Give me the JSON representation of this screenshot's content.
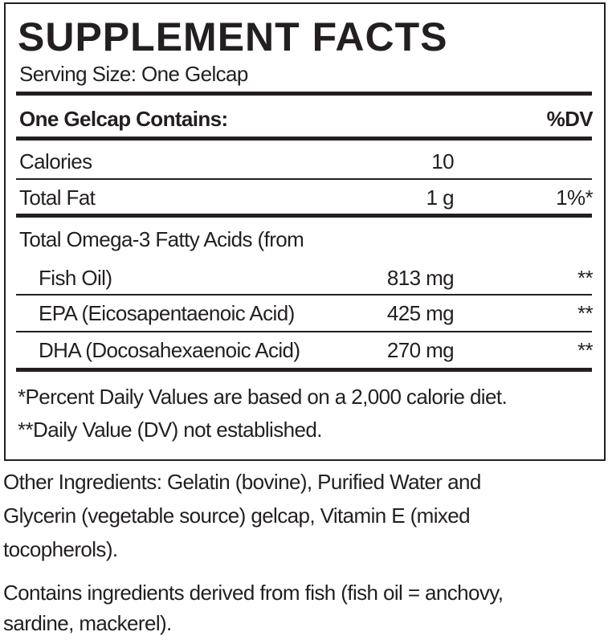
{
  "title": "SUPPLEMENT FACTS",
  "serving_size": "Serving Size: One Gelcap",
  "header": {
    "label": "One Gelcap Contains:",
    "dv": "%DV"
  },
  "rows": [
    {
      "name_lines": [
        "Calories"
      ],
      "amount": "10"
    },
    {
      "name_lines": [
        "Total Fat"
      ],
      "amount": "1 g",
      "dv": "1%*"
    },
    {
      "name_lines": [
        "Total Omega-3 Fatty Acids (from",
        "Fish Oil)"
      ],
      "amount": "813 mg",
      "dv": "**"
    },
    {
      "name_lines": [
        "EPA (Eicosapentaenoic Acid)"
      ],
      "amount": "425 mg",
      "dv": "**"
    },
    {
      "name_lines": [
        "DHA (Docosahexaenoic Acid)"
      ],
      "amount": "270 mg",
      "dv": "**"
    }
  ],
  "footnotes": [
    "*Percent Daily Values are based on a 2,000 calorie diet.",
    "**Daily Value (DV) not established."
  ],
  "other_ingredients": [
    "Other Ingredients: Gelatin (bovine), Purified Water and",
    "Glycerin (vegetable source) gelcap, Vitamin E (mixed",
    "tocopherols)."
  ],
  "contains": [
    "Contains ingredients derived from fish (fish oil = anchovy,",
    "sardine, mackerel)."
  ]
}
